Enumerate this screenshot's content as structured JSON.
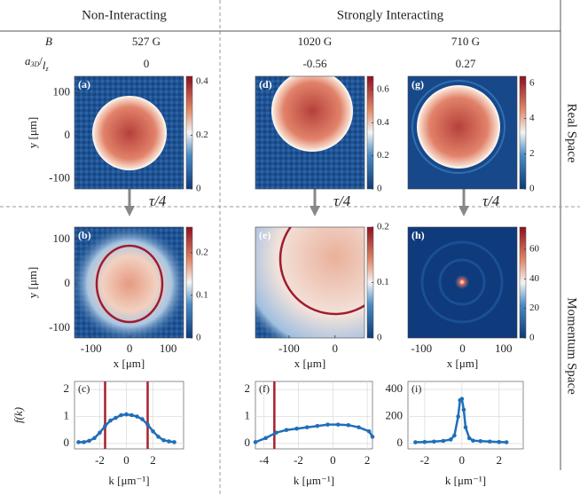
{
  "header": {
    "left": "Non-Interacting",
    "right": "Strongly Interacting"
  },
  "table": {
    "b_label": "B",
    "b": [
      "527 G",
      "1020 G",
      "710 G"
    ],
    "a_label": [
      "a",
      "3D",
      "/",
      "l",
      "z"
    ],
    "a": [
      0,
      -0.56,
      0.27
    ]
  },
  "row_labels": [
    "Real Space",
    "Momentum Space"
  ],
  "arrow_label": "τ/4",
  "chart_data": [
    {
      "type": "heatmap",
      "label": "(a)",
      "ylabel": "y [μm]",
      "ylim": [
        -124,
        138
      ],
      "yticks": [
        -100,
        0,
        100
      ],
      "clim": [
        0,
        0.42
      ],
      "cticks": [
        0,
        0.2,
        0.4
      ]
    },
    {
      "type": "heatmap",
      "label": "(d)",
      "clim": [
        0,
        0.68
      ],
      "cticks": [
        0,
        0.2,
        0.4,
        0.6
      ]
    },
    {
      "type": "heatmap",
      "label": "(g)",
      "clim": [
        0,
        6.4
      ],
      "cticks": [
        0,
        2,
        4,
        6
      ]
    },
    {
      "type": "heatmap",
      "label": "(b)",
      "xlabel": "x [μm]",
      "ylabel": "y [μm]",
      "xlim": [
        -143,
        140
      ],
      "ylim": [
        -122,
        128
      ],
      "xticks": [
        -100,
        0,
        100
      ],
      "yticks": [
        -100,
        0,
        100
      ],
      "clim": [
        0,
        0.26
      ],
      "cticks": [
        0,
        0.1,
        0.2
      ]
    },
    {
      "type": "heatmap",
      "label": "(e)",
      "xlabel": "x [μm]",
      "xlim": [
        -173,
        64
      ],
      "xticks": [
        -100,
        0
      ],
      "clim": [
        0,
        0.2
      ],
      "cticks": [
        0,
        0.1,
        0.2
      ]
    },
    {
      "type": "heatmap",
      "label": "(h)",
      "xlabel": "x [μm]",
      "xlim": [
        -133,
        133
      ],
      "xticks": [
        -100,
        0,
        100
      ],
      "clim": [
        0,
        75
      ],
      "cticks": [
        0,
        20,
        40,
        60
      ]
    },
    {
      "type": "line",
      "label": "(c)",
      "xlabel": "k [μm⁻¹]",
      "ylabel": "f(k)",
      "grid": true,
      "color": "#1f6fb8",
      "vline_color": "#a8202a",
      "xlim": [
        -3.9,
        4.3
      ],
      "ylim": [
        -0.2,
        2.3
      ],
      "xticks": [
        -2,
        0,
        2
      ],
      "yticks": [
        0,
        1,
        2
      ],
      "vlines": [
        -1.6,
        1.6
      ],
      "x": [
        -3.6,
        -3.2,
        -2.8,
        -2.4,
        -2.0,
        -1.6,
        -1.2,
        -0.8,
        -0.4,
        0,
        0.4,
        0.8,
        1.2,
        1.6,
        2.0,
        2.4,
        2.8,
        3.2,
        3.6
      ],
      "values": [
        0.05,
        0.05,
        0.1,
        0.2,
        0.4,
        0.65,
        0.85,
        0.95,
        1.05,
        1.08,
        1.05,
        1.0,
        0.9,
        0.7,
        0.45,
        0.25,
        0.12,
        0.08,
        0.05
      ]
    },
    {
      "type": "line",
      "label": "(f)",
      "xlabel": "k [μm⁻¹]",
      "grid": true,
      "color": "#1f6fb8",
      "vline_color": "#a8202a",
      "xlim": [
        -4.5,
        2.3
      ],
      "ylim": [
        -0.2,
        2.3
      ],
      "xticks": [
        -4,
        -2,
        0,
        2
      ],
      "yticks": [
        0,
        1,
        2
      ],
      "vlines": [
        -3.4
      ],
      "x": [
        -4.5,
        -3.9,
        -3.3,
        -2.7,
        -2.1,
        -1.5,
        -0.9,
        -0.3,
        0.3,
        0.9,
        1.5,
        2.1,
        2.3
      ],
      "values": [
        0.05,
        0.2,
        0.4,
        0.5,
        0.55,
        0.6,
        0.65,
        0.7,
        0.7,
        0.68,
        0.6,
        0.45,
        0.25
      ]
    },
    {
      "type": "line",
      "label": "(i)",
      "xlabel": "k [μm⁻¹]",
      "grid": true,
      "color": "#1f6fb8",
      "xlim": [
        -2.9,
        3.3
      ],
      "ylim": [
        -39,
        459
      ],
      "xticks": [
        -2,
        0,
        2
      ],
      "yticks": [
        0,
        200,
        400
      ],
      "x": [
        -2.5,
        -2,
        -1.5,
        -1,
        -0.6,
        -0.4,
        -0.2,
        -0.1,
        0,
        0.1,
        0.2,
        0.4,
        0.6,
        1,
        1.5,
        2,
        2.4
      ],
      "values": [
        10,
        12,
        15,
        20,
        30,
        60,
        200,
        320,
        330,
        250,
        120,
        40,
        22,
        18,
        15,
        12,
        10
      ]
    }
  ]
}
